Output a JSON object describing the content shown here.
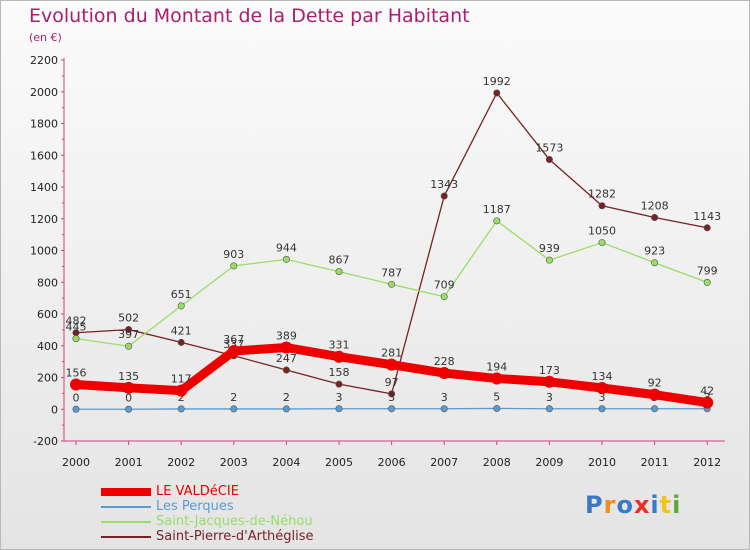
{
  "title": "Evolution du Montant de la Dette par Habitant",
  "subtitle": "(en €)",
  "logo_text": "Proxiti",
  "chart_data": {
    "type": "line",
    "x": [
      "2000",
      "2001",
      "2002",
      "2003",
      "2004",
      "2005",
      "2006",
      "2007",
      "2008",
      "2009",
      "2010",
      "2011",
      "2012"
    ],
    "ylim": [
      -200,
      2200
    ],
    "yticks": [
      -200,
      0,
      200,
      400,
      600,
      800,
      1000,
      1200,
      1400,
      1600,
      1800,
      2000,
      2200
    ],
    "grid": false,
    "legend_placement": "bottom-left",
    "series": [
      {
        "name": "LE VALDéCIE",
        "color": "#ee0000",
        "values": [
          156,
          135,
          117,
          367,
          389,
          331,
          281,
          228,
          194,
          173,
          134,
          92,
          42
        ]
      },
      {
        "name": "Les Perques",
        "color": "#5b9bd0",
        "values": [
          0,
          0,
          2,
          2,
          2,
          3,
          3,
          3,
          5,
          3,
          3,
          3,
          3
        ]
      },
      {
        "name": "Saint-Jacques-de-Néhou",
        "color": "#99dd66",
        "values": [
          445,
          397,
          651,
          903,
          944,
          867,
          787,
          709,
          1187,
          939,
          1050,
          923,
          799
        ]
      },
      {
        "name": "Saint-Pierre-d'Arthéglise",
        "color": "#772222",
        "values": [
          482,
          502,
          421,
          337,
          247,
          158,
          97,
          1343,
          1992,
          1573,
          1282,
          1208,
          1143
        ]
      }
    ]
  }
}
